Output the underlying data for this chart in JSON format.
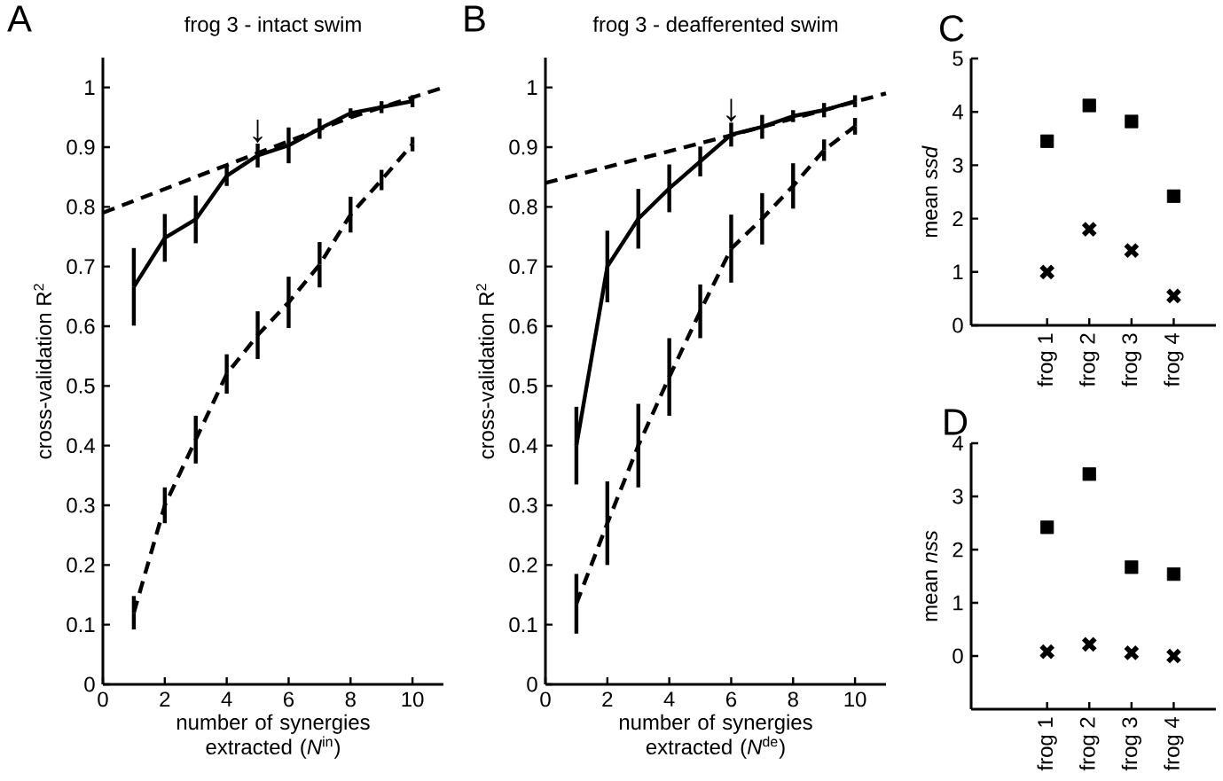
{
  "chart_data": [
    {
      "type": "line",
      "title": "frog 3 - intact swim",
      "xlabel": "number of synergies extracted (*N*$^{in}$)",
      "ylabel": "cross-validation R$^{2}$",
      "x": [
        1,
        2,
        3,
        4,
        5,
        6,
        7,
        8,
        9,
        10
      ],
      "xlim": [
        0,
        11
      ],
      "xticks": [
        0,
        2,
        4,
        6,
        8,
        10
      ],
      "ylim": [
        0,
        1.05
      ],
      "yticks": [
        0,
        0.1,
        0.2,
        0.3,
        0.4,
        0.5,
        0.6,
        0.7,
        0.8,
        0.9,
        1
      ],
      "series": [
        {
          "color": "#000000",
          "line_style": "solid",
          "values": [
            0.666,
            0.748,
            0.779,
            0.852,
            0.886,
            0.903,
            0.931,
            0.957,
            0.967,
            0.977
          ],
          "errors": [
            0.065,
            0.04,
            0.04,
            0.017,
            0.02,
            0.03,
            0.017,
            0.008,
            0.01,
            0.01
          ]
        },
        {
          "color": "#000000",
          "line_style": "dashed",
          "values": [
            0.12,
            0.3,
            0.41,
            0.52,
            0.585,
            0.64,
            0.703,
            0.787,
            0.845,
            0.905
          ],
          "errors": [
            0.028,
            0.03,
            0.04,
            0.033,
            0.04,
            0.043,
            0.038,
            0.03,
            0.017,
            0.012
          ]
        },
        {
          "color": "#000000",
          "line_style": "dashed",
          "x": [
            0,
            4,
            8,
            11
          ],
          "values": [
            0.79,
            0.87,
            0.95,
            1.0
          ]
        }
      ],
      "annotations": [
        "A",
        {
          "text": "↓",
          "x": 5,
          "y": 0.886
        }
      ]
    },
    {
      "type": "line",
      "title": "frog 3 - deafferented swim",
      "xlabel": "number of synergies extracted (*N*$^{de}$)",
      "ylabel": "cross-validation R$^{2}$",
      "x": [
        1,
        2,
        3,
        4,
        5,
        6,
        7,
        8,
        9,
        10
      ],
      "xlim": [
        0,
        11
      ],
      "xticks": [
        0,
        2,
        4,
        6,
        8,
        10
      ],
      "ylim": [
        0,
        1.05
      ],
      "yticks": [
        0,
        0.1,
        0.2,
        0.3,
        0.4,
        0.5,
        0.6,
        0.7,
        0.8,
        0.9,
        1
      ],
      "series": [
        {
          "color": "#000000",
          "line_style": "solid",
          "values": [
            0.4,
            0.7,
            0.78,
            0.831,
            0.876,
            0.921,
            0.934,
            0.952,
            0.962,
            0.977
          ],
          "errors": [
            0.065,
            0.06,
            0.05,
            0.04,
            0.025,
            0.02,
            0.02,
            0.01,
            0.012,
            0.01
          ]
        },
        {
          "color": "#000000",
          "line_style": "dashed",
          "values": [
            0.135,
            0.27,
            0.4,
            0.515,
            0.625,
            0.73,
            0.78,
            0.835,
            0.895,
            0.935
          ],
          "errors": [
            0.05,
            0.07,
            0.07,
            0.065,
            0.045,
            0.057,
            0.043,
            0.038,
            0.018,
            0.014
          ]
        },
        {
          "color": "#000000",
          "line_style": "dashed",
          "x": [
            0,
            6,
            11
          ],
          "values": [
            0.84,
            0.92,
            0.99
          ]
        }
      ],
      "annotations": [
        "B",
        {
          "text": "↓",
          "x": 6,
          "y": 0.921
        }
      ]
    },
    {
      "type": "scatter",
      "ylabel": "mean *ssd*",
      "categories": [
        "frog 1",
        "frog 2",
        "frog 3",
        "frog 4"
      ],
      "ylim": [
        0,
        5
      ],
      "yticks": [
        0,
        1,
        2,
        3,
        4,
        5
      ],
      "series": [
        {
          "color": "#000000",
          "marker": "square",
          "values": [
            3.45,
            4.12,
            3.82,
            2.42
          ]
        },
        {
          "color": "#000000",
          "marker": "cross",
          "values": [
            1.0,
            1.8,
            1.4,
            0.55
          ]
        }
      ],
      "annotations": [
        "C"
      ]
    },
    {
      "type": "scatter",
      "ylabel": "mean *nss*",
      "categories": [
        "frog 1",
        "frog 2",
        "frog 3",
        "frog 4"
      ],
      "ylim": [
        -1,
        4
      ],
      "yticks": [
        0,
        1,
        2,
        3,
        4
      ],
      "series": [
        {
          "color": "#000000",
          "marker": "square",
          "values": [
            2.42,
            3.42,
            1.67,
            1.54
          ]
        },
        {
          "color": "#000000",
          "marker": "cross",
          "values": [
            0.08,
            0.22,
            0.06,
            0.0
          ]
        }
      ],
      "annotations": [
        "D"
      ]
    }
  ]
}
